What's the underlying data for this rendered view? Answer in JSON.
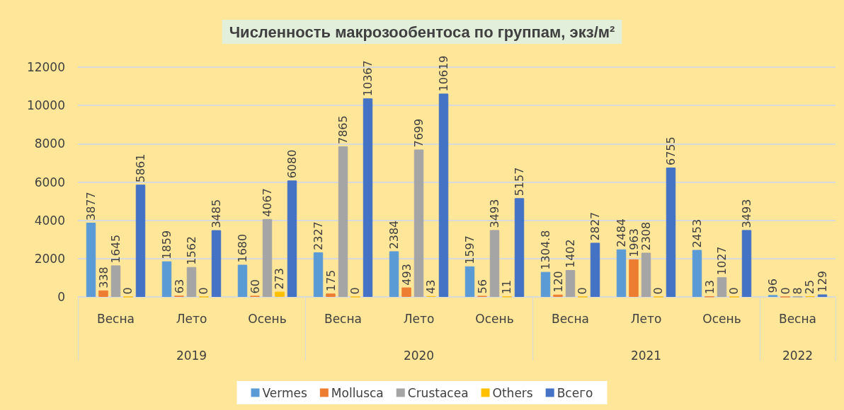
{
  "chart_data": {
    "type": "bar",
    "title": "Численность макрозообентоса по группам, экз/м²",
    "categories": [
      "Весна",
      "Лето",
      "Осень",
      "Весна",
      "Лето",
      "Осень",
      "Весна",
      "Лето",
      "Осень",
      "Весна"
    ],
    "annotations": [
      "2019",
      "2020",
      "2021",
      "2022"
    ],
    "series": [
      {
        "name": "Vermes",
        "color": "#5b9bd5",
        "values": [
          3877,
          1859,
          1680,
          2327,
          2384,
          1597,
          1304.8,
          2484,
          2453,
          96
        ]
      },
      {
        "name": "Mollusca",
        "color": "#ed7d31",
        "values": [
          338,
          63,
          60,
          175,
          493,
          56,
          120,
          1963,
          13,
          0
        ]
      },
      {
        "name": "Crustacea",
        "color": "#a5a5a5",
        "values": [
          1645,
          1562,
          4067,
          7865,
          7699,
          3493,
          1402,
          2308,
          1027,
          8
        ]
      },
      {
        "name": "Others",
        "color": "#ffc000",
        "values": [
          0,
          0,
          273,
          0,
          43,
          11,
          0,
          0,
          0,
          25
        ]
      },
      {
        "name": "Всего",
        "color": "#4472c4",
        "values": [
          5861,
          3485,
          6080,
          10367,
          10619,
          5157,
          2827,
          6755,
          3493,
          129
        ]
      }
    ],
    "ylim": [
      0,
      12000
    ],
    "yticks": [
      0,
      2000,
      4000,
      6000,
      8000,
      10000,
      12000
    ],
    "grid": "y",
    "legend": "bottom",
    "data_labels": true
  }
}
